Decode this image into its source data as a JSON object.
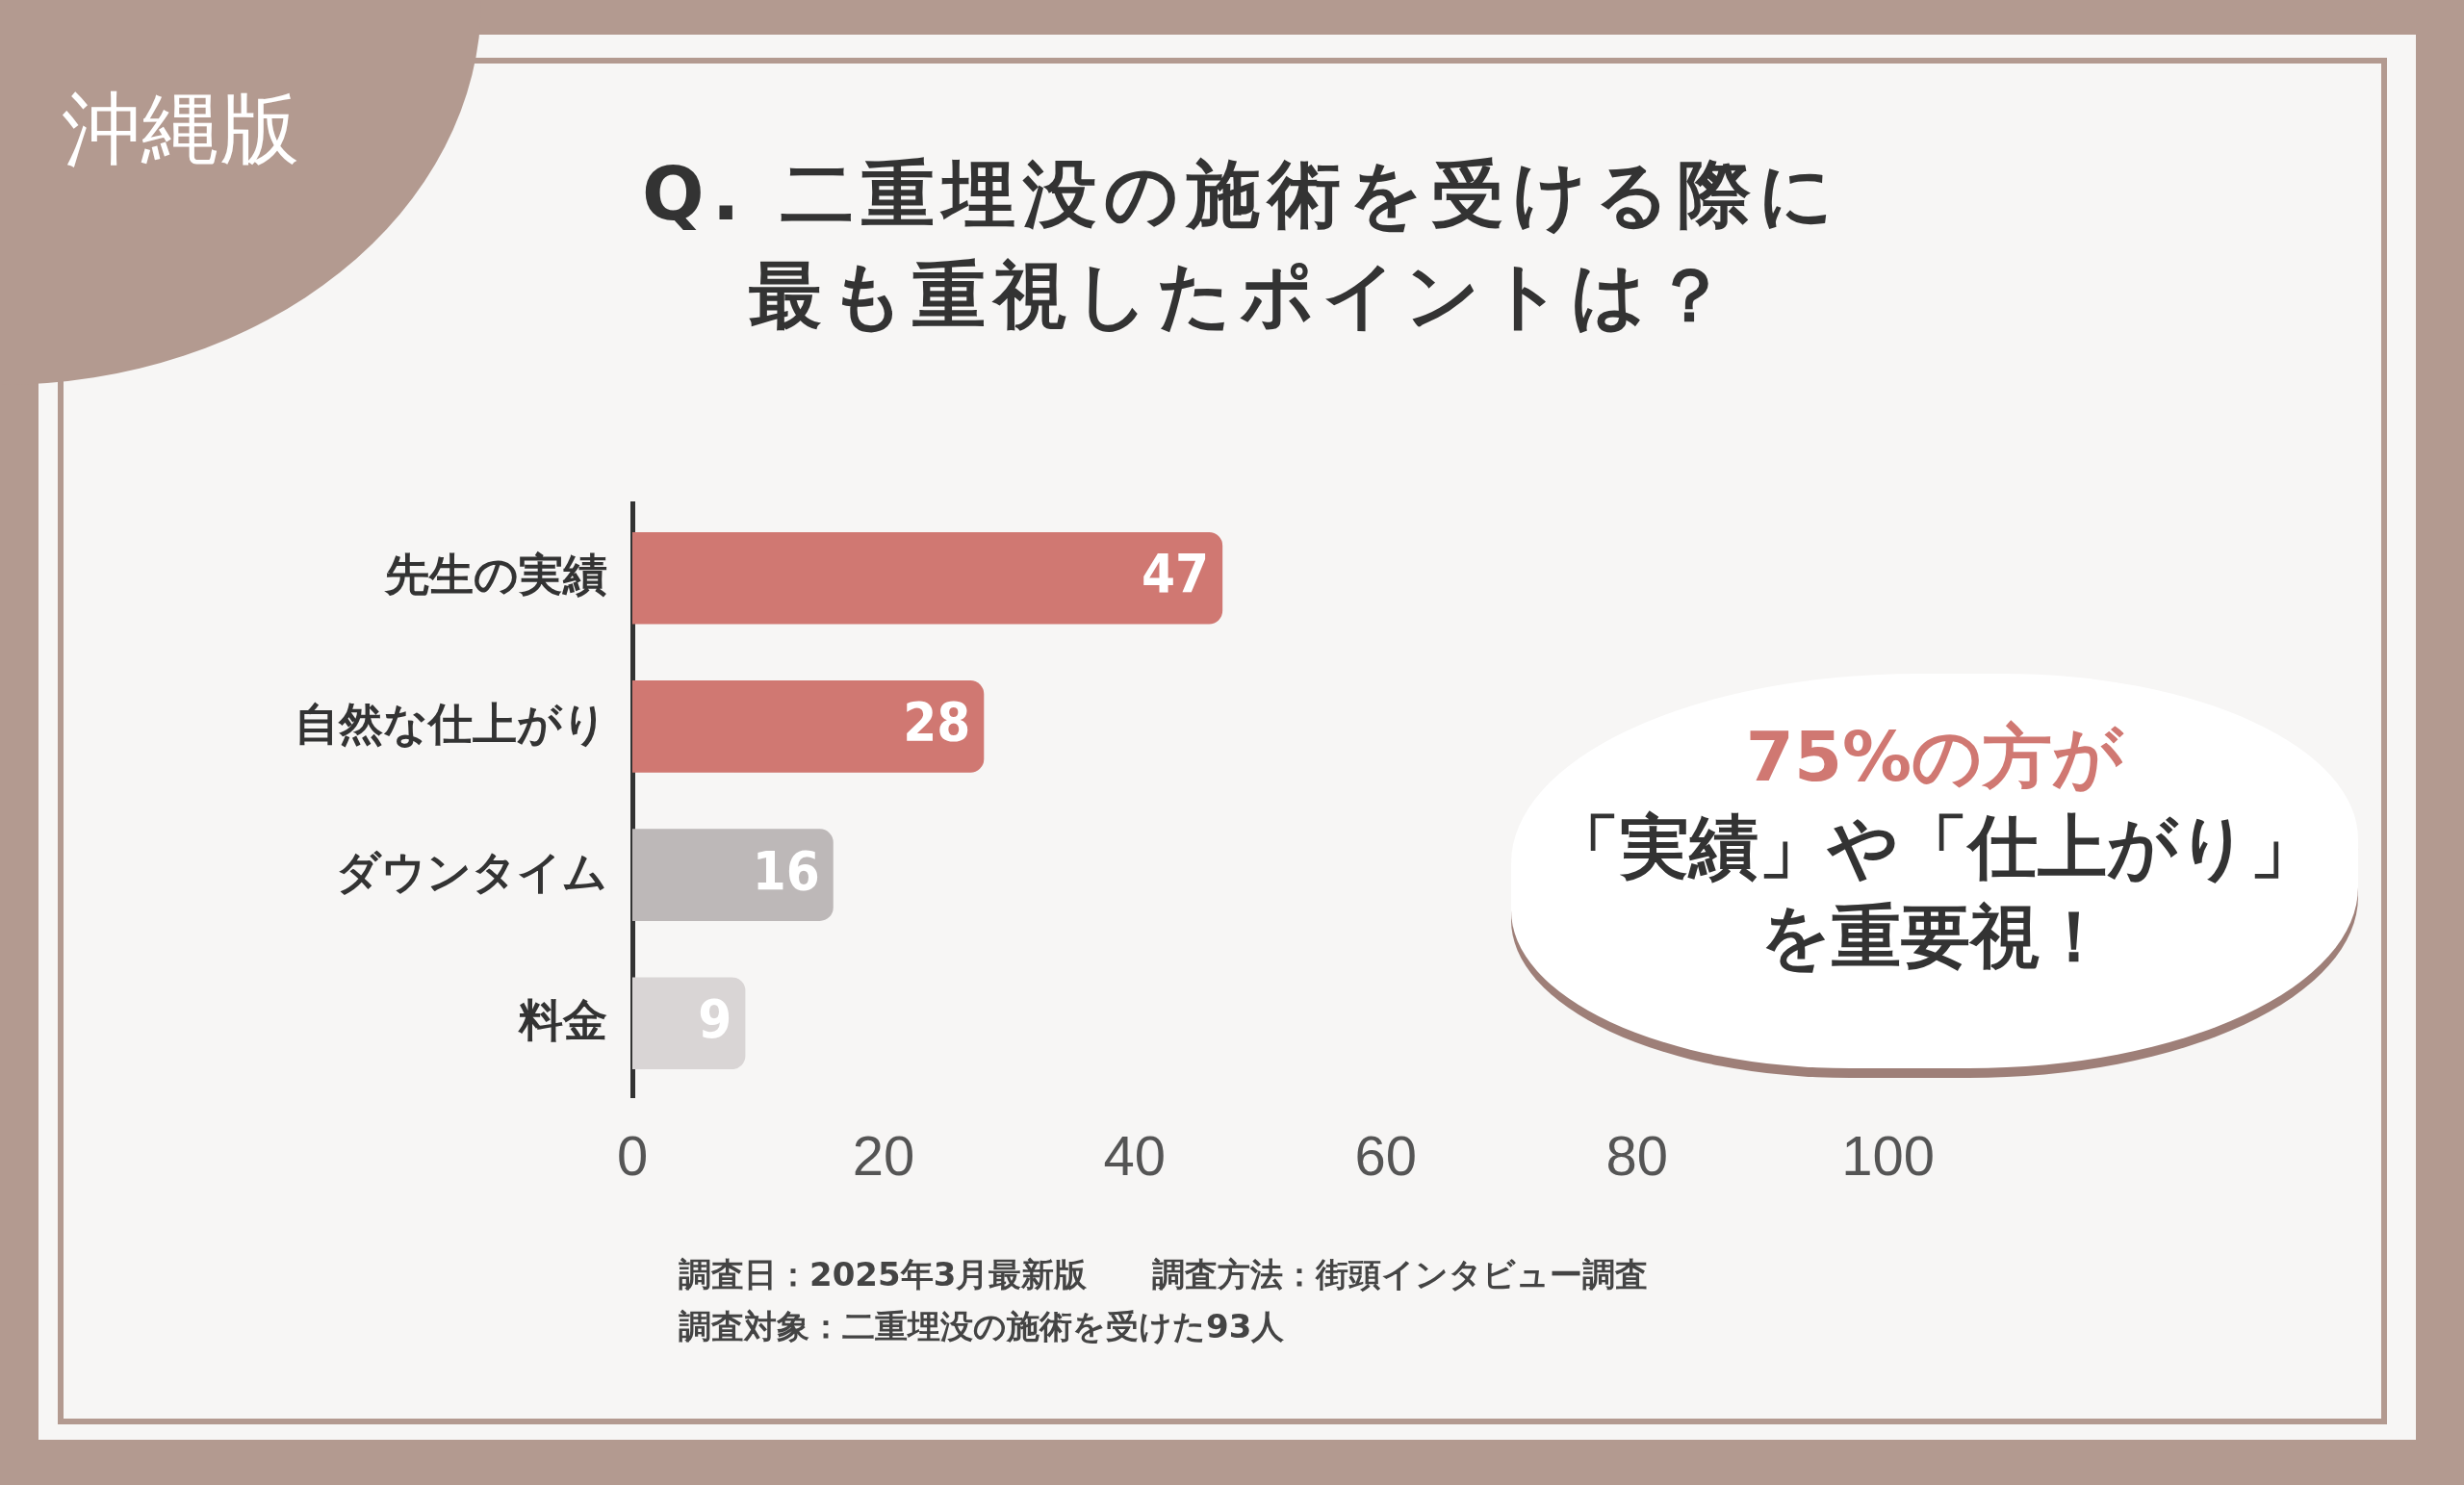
{
  "chart_data": {
    "type": "bar",
    "orientation": "horizontal",
    "title": "Q. 二重埋没の施術を受ける際に最も重視したポイントは？",
    "categories": [
      "先生の実績",
      "自然な仕上がり",
      "ダウンタイム",
      "料金"
    ],
    "values": [
      47,
      28,
      16,
      9
    ],
    "colors": [
      "#d07872",
      "#d07872",
      "#bdb8b8",
      "#d9d5d5"
    ],
    "xlim": [
      0,
      100
    ],
    "xticks": [
      0,
      20,
      40,
      60,
      80,
      100
    ],
    "grid": false,
    "legend": false,
    "data_labels": true,
    "annotations": [
      "沖縄版",
      "75%の方が",
      "「実績」や「仕上がり」",
      "を重要視！",
      "調査日：2025年3月最新版　　調査方法：街頭インタビュー調査",
      "調査対象：二重埋没の施術を受けた93人"
    ]
  }
}
